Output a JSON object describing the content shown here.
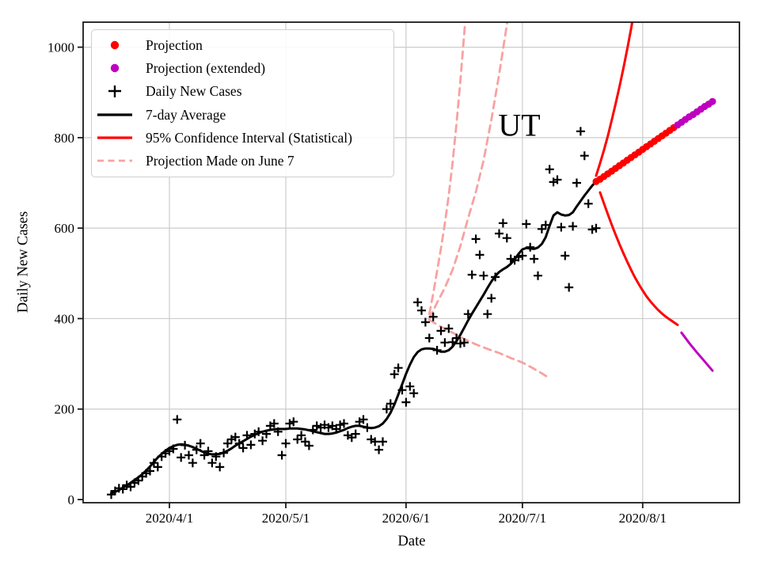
{
  "chart_data": {
    "type": "line",
    "title": "",
    "xlabel": "Date",
    "ylabel": "Daily New Cases",
    "annotation": {
      "text": "UT"
    },
    "grid": true,
    "xlim_dates": [
      "2020-03-10",
      "2020-08-26"
    ],
    "ylim": [
      -10,
      1062
    ],
    "x_ticks": [
      [
        "2020-04-01",
        "2020/4/1"
      ],
      [
        "2020-05-01",
        "2020/5/1"
      ],
      [
        "2020-06-01",
        "2020/6/1"
      ],
      [
        "2020-07-01",
        "2020/7/1"
      ],
      [
        "2020-08-01",
        "2020/8/1"
      ]
    ],
    "y_ticks": [
      [
        0,
        "0"
      ],
      [
        200,
        "200"
      ],
      [
        400,
        "400"
      ],
      [
        600,
        "600"
      ],
      [
        800,
        "800"
      ],
      [
        1000,
        "1000"
      ]
    ],
    "style": {
      "background": "#ffffff",
      "grid_color": "#cccccc",
      "spine_color": "#1a1a1a",
      "red": "#ff0000",
      "magenta": "#bf00bf",
      "pink": "#f9a1a1",
      "black": "#000000"
    },
    "legend": {
      "position": "upper left",
      "entries": [
        {
          "label": "Projection",
          "marker": "dot",
          "color": "#ff0000"
        },
        {
          "label": "Projection (extended)",
          "marker": "dot",
          "color": "#bf00bf"
        },
        {
          "label": "Daily New Cases",
          "marker": "plus",
          "color": "#000000"
        },
        {
          "label": "7-day Average",
          "marker": "line",
          "color": "#000000"
        },
        {
          "label": "95% Confidence Interval (Statistical)",
          "marker": "line",
          "color": "#ff0000"
        },
        {
          "label": "Projection Made on June 7",
          "marker": "dash",
          "color": "#f9a1a1"
        }
      ]
    },
    "series": {
      "daily_new_cases": {
        "type": "scatter-plus",
        "color": "#000000",
        "start": "2020-03-17",
        "values": [
          11,
          19,
          25,
          23,
          32,
          28,
          37,
          42,
          51,
          58,
          63,
          81,
          72,
          95,
          102,
          107,
          112,
          177,
          93,
          120,
          98,
          81,
          110,
          124,
          98,
          107,
          81,
          95,
          72,
          103,
          124,
          133,
          138,
          124,
          114,
          142,
          121,
          145,
          150,
          130,
          145,
          163,
          168,
          150,
          98,
          124,
          168,
          172,
          133,
          142,
          128,
          119,
          154,
          163,
          159,
          165,
          159,
          163,
          156,
          165,
          168,
          142,
          137,
          145,
          172,
          177,
          159,
          133,
          128,
          110,
          128,
          200,
          212,
          277,
          291,
          242,
          215,
          250,
          235,
          436,
          418,
          392,
          357,
          404,
          330,
          373,
          347,
          378,
          348,
          357,
          345,
          347,
          410,
          497,
          576,
          541,
          495,
          410,
          445,
          492,
          588,
          611,
          578,
          532,
          529,
          536,
          539,
          609,
          558,
          532,
          495,
          598,
          607,
          730,
          702,
          707,
          602,
          539,
          469,
          604,
          700,
          814,
          760,
          654,
          597,
          600
        ]
      },
      "seven_day_average": {
        "type": "line",
        "color": "#000000",
        "start": "2020-03-17",
        "values": [
          14,
          17,
          21,
          26,
          31,
          37,
          43,
          49,
          56,
          64,
          73,
          83,
          93,
          101,
          108,
          114,
          118,
          121,
          122,
          121,
          119,
          116,
          112,
          108,
          104,
          101,
          100,
          100,
          101,
          104,
          108,
          113,
          119,
          124,
          129,
          134,
          139,
          143,
          147,
          150,
          152,
          154,
          155,
          156,
          156,
          156,
          157,
          157,
          157,
          156,
          155,
          153,
          151,
          149,
          147,
          145,
          145,
          146,
          148,
          151,
          154,
          158,
          161,
          163,
          163,
          161,
          159,
          158,
          159,
          162,
          168,
          178,
          192,
          210,
          232,
          255,
          278,
          298,
          315,
          326,
          332,
          334,
          334,
          333,
          330,
          327,
          327,
          330,
          338,
          350,
          364,
          380,
          396,
          411,
          425,
          439,
          453,
          468,
          482,
          494,
          503,
          509,
          514,
          521,
          531,
          543,
          553,
          556,
          555,
          554,
          557,
          565,
          580,
          605,
          628,
          635,
          630,
          628,
          629,
          635,
          648,
          660,
          672,
          683,
          694,
          703
        ]
      },
      "projection": {
        "type": "dots",
        "color": "#ff0000",
        "start": "2020-07-20",
        "values": [
          703,
          708,
          714,
          720,
          726,
          732,
          738,
          744,
          750,
          756,
          762,
          768,
          774,
          780,
          786,
          792,
          798,
          804,
          810,
          816,
          822
        ]
      },
      "projection_extended": {
        "type": "dots",
        "color": "#bf00bf",
        "start": "2020-08-10",
        "values": [
          828,
          834,
          840,
          846,
          851,
          857,
          863,
          869,
          874,
          880
        ]
      },
      "ci_upper": {
        "type": "line",
        "color": "#ff0000",
        "points": [
          [
            "2020-07-20",
            716
          ],
          [
            "2020-07-21",
            743
          ],
          [
            "2020-07-22",
            772
          ],
          [
            "2020-07-23",
            803
          ],
          [
            "2020-07-24",
            838
          ],
          [
            "2020-07-25",
            874
          ],
          [
            "2020-07-26",
            912
          ],
          [
            "2020-07-27",
            952
          ],
          [
            "2020-07-28",
            995
          ],
          [
            "2020-07-29",
            1040
          ],
          [
            "2020-07-30",
            1090
          ]
        ]
      },
      "ci_lower": {
        "type": "line",
        "color": "#ff0000",
        "points": [
          [
            "2020-07-21",
            679
          ],
          [
            "2020-07-22",
            655
          ],
          [
            "2020-07-23",
            631
          ],
          [
            "2020-07-24",
            608
          ],
          [
            "2020-07-25",
            586
          ],
          [
            "2020-07-26",
            565
          ],
          [
            "2020-07-27",
            545
          ],
          [
            "2020-07-28",
            526
          ],
          [
            "2020-07-29",
            508
          ],
          [
            "2020-07-30",
            491
          ],
          [
            "2020-07-31",
            476
          ],
          [
            "2020-08-01",
            462
          ],
          [
            "2020-08-02",
            449
          ],
          [
            "2020-08-03",
            438
          ],
          [
            "2020-08-04",
            428
          ],
          [
            "2020-08-05",
            419
          ],
          [
            "2020-08-06",
            411
          ],
          [
            "2020-08-07",
            404
          ],
          [
            "2020-08-08",
            398
          ],
          [
            "2020-08-09",
            392
          ],
          [
            "2020-08-10",
            386
          ]
        ]
      },
      "ci_lower_extended": {
        "type": "line",
        "color": "#bf00bf",
        "points": [
          [
            "2020-08-11",
            369
          ],
          [
            "2020-08-13",
            346
          ],
          [
            "2020-08-15",
            325
          ],
          [
            "2020-08-17",
            305
          ],
          [
            "2020-08-19",
            285
          ]
        ]
      },
      "june7_projection_upper_left": {
        "type": "dashed",
        "color": "#f9a1a1",
        "points": [
          [
            "2020-06-07",
            410
          ],
          [
            "2020-06-08",
            455
          ],
          [
            "2020-06-09",
            505
          ],
          [
            "2020-06-10",
            555
          ],
          [
            "2020-06-11",
            610
          ],
          [
            "2020-06-12",
            672
          ],
          [
            "2020-06-13",
            745
          ],
          [
            "2020-06-14",
            830
          ],
          [
            "2020-06-15",
            925
          ],
          [
            "2020-06-16",
            1030
          ],
          [
            "2020-06-17",
            1140
          ]
        ]
      },
      "june7_projection_upper_right": {
        "type": "dashed",
        "color": "#f9a1a1",
        "points": [
          [
            "2020-06-07",
            400
          ],
          [
            "2020-06-09",
            435
          ],
          [
            "2020-06-11",
            468
          ],
          [
            "2020-06-13",
            508
          ],
          [
            "2020-06-15",
            560
          ],
          [
            "2020-06-17",
            622
          ],
          [
            "2020-06-19",
            680
          ],
          [
            "2020-06-21",
            750
          ],
          [
            "2020-06-23",
            840
          ],
          [
            "2020-06-25",
            940
          ],
          [
            "2020-06-27",
            1050
          ],
          [
            "2020-06-28",
            1110
          ]
        ]
      },
      "june7_projection_lower": {
        "type": "dashed",
        "color": "#f9a1a1",
        "points": [
          [
            "2020-06-07",
            397
          ],
          [
            "2020-06-10",
            382
          ],
          [
            "2020-06-13",
            369
          ],
          [
            "2020-06-16",
            355
          ],
          [
            "2020-06-19",
            343
          ],
          [
            "2020-06-22",
            333
          ],
          [
            "2020-06-25",
            324
          ],
          [
            "2020-06-28",
            313
          ],
          [
            "2020-07-01",
            303
          ],
          [
            "2020-07-04",
            289
          ],
          [
            "2020-07-06",
            279
          ],
          [
            "2020-07-08",
            268
          ]
        ]
      }
    }
  }
}
